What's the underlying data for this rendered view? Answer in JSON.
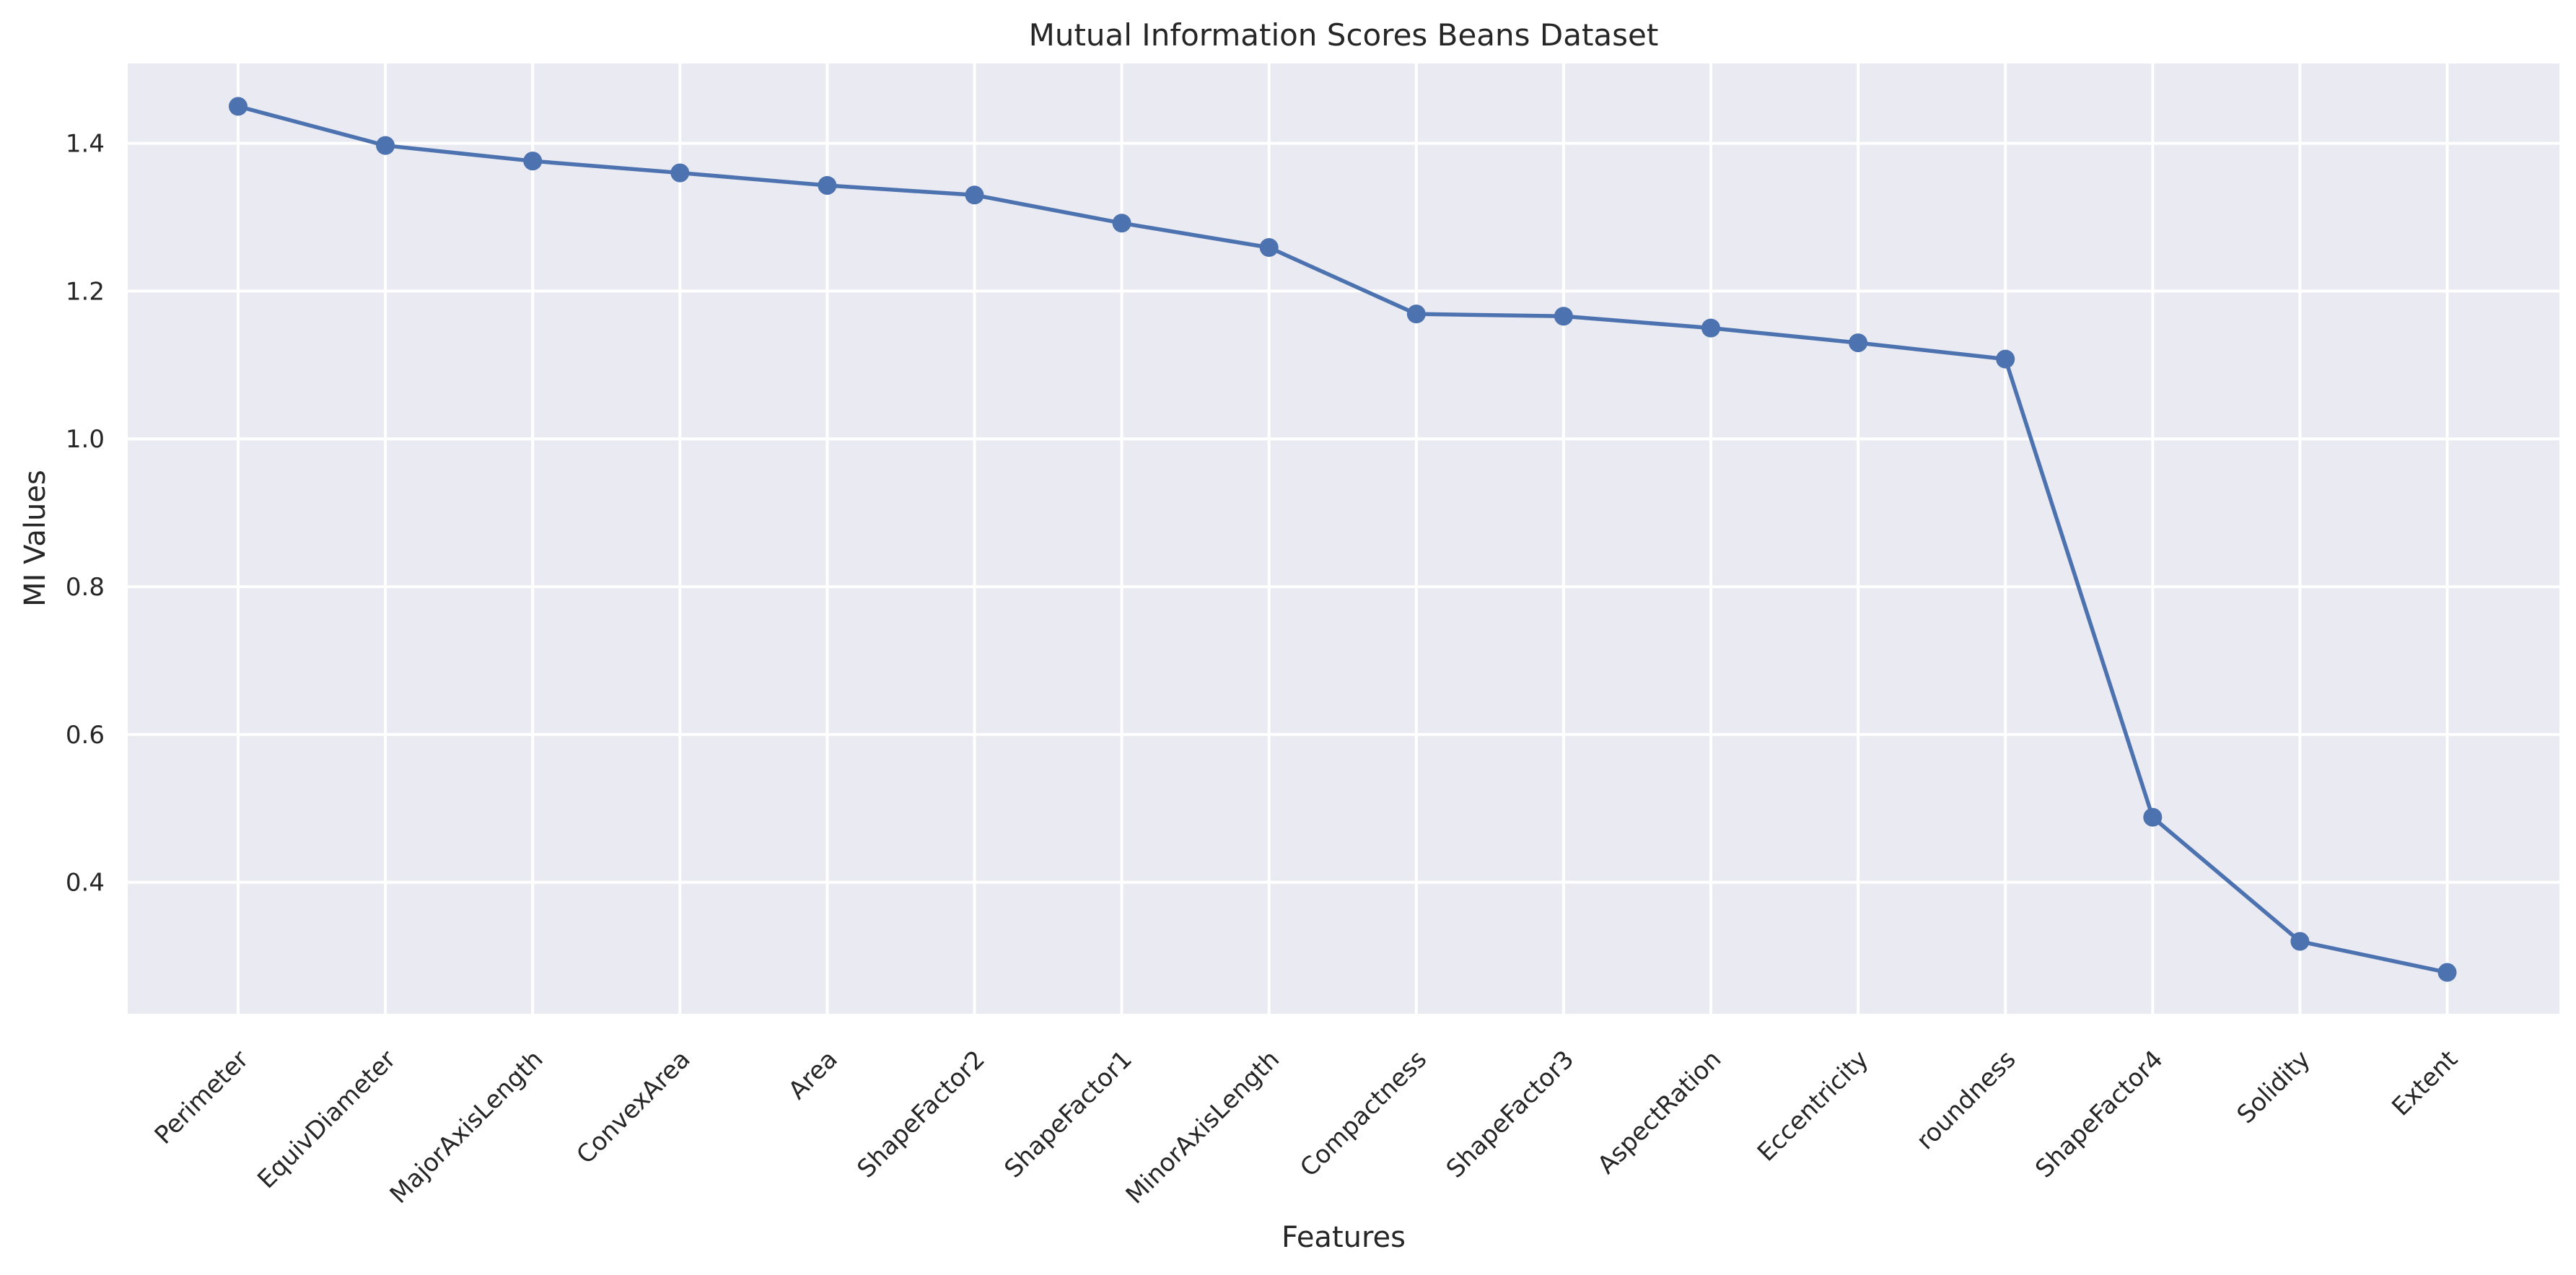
{
  "chart_data": {
    "type": "line",
    "title": "Mutual Information Scores Beans Dataset",
    "xlabel": "Features",
    "ylabel": "MI Values",
    "categories": [
      "Perimeter",
      "EquivDiameter",
      "MajorAxisLength",
      "ConvexArea",
      "Area",
      "ShapeFactor2",
      "ShapeFactor1",
      "MinorAxisLength",
      "Compactness",
      "ShapeFactor3",
      "AspectRation",
      "Eccentricity",
      "roundness",
      "ShapeFactor4",
      "Solidity",
      "Extent"
    ],
    "series": [
      {
        "values": [
          1.45,
          1.397,
          1.376,
          1.36,
          1.343,
          1.33,
          1.292,
          1.259,
          1.169,
          1.166,
          1.15,
          1.13,
          1.108,
          0.488,
          0.32,
          0.278
        ]
      }
    ],
    "yticks": [
      0.4,
      0.6,
      0.8,
      1.0,
      1.2,
      1.4
    ],
    "ytick_labels": [
      "0.4",
      "0.6",
      "0.8",
      "1.0",
      "1.2",
      "1.4"
    ],
    "ylim": [
      0.222,
      1.508
    ],
    "grid": true,
    "colors": {
      "line": "#4c72b0",
      "plot_background": "#eaeaf2",
      "grid": "#ffffff",
      "text": "#262626"
    }
  }
}
